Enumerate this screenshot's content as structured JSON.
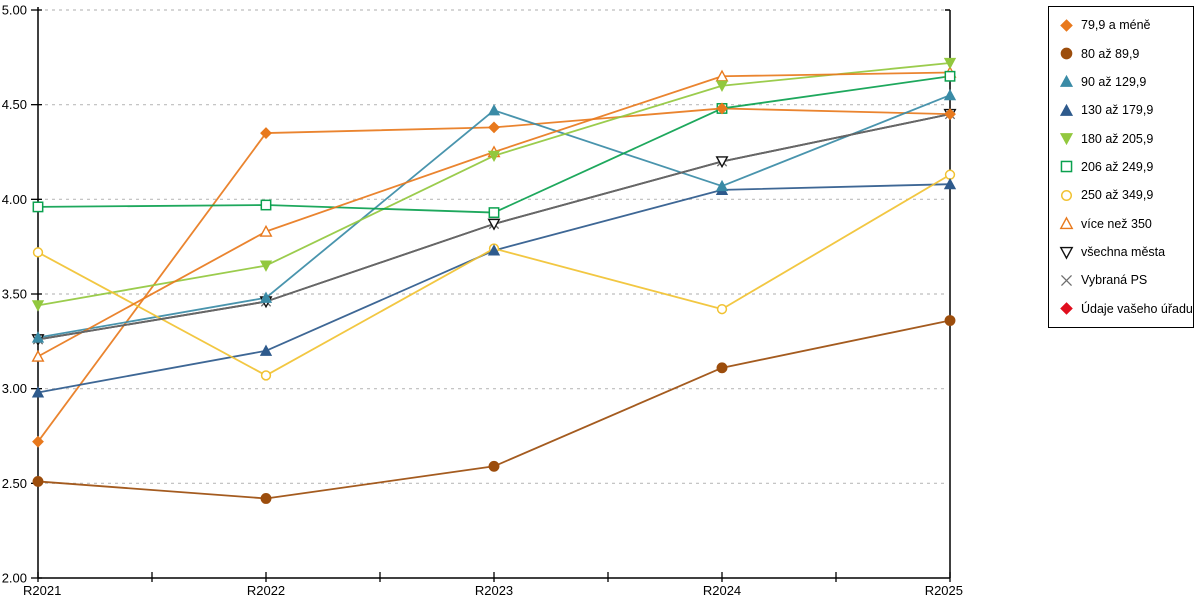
{
  "chart_data": {
    "type": "line",
    "title": "",
    "xlabel": "",
    "ylabel": "",
    "categories": [
      "R2021",
      "R2022",
      "R2023",
      "R2024",
      "R2025"
    ],
    "ylim": [
      2.0,
      5.0
    ],
    "y_ticks": [
      {
        "label": "5.00",
        "value": 5.0
      },
      {
        "label": "4.50",
        "value": 4.5
      },
      {
        "label": "4.00",
        "value": 4.0
      },
      {
        "label": "3.50",
        "value": 3.5
      },
      {
        "label": "3.00",
        "value": 3.0
      },
      {
        "label": "2.50",
        "value": 2.5
      },
      {
        "label": "2.00",
        "value": 2.0
      }
    ],
    "grid": "horizontal-dashed",
    "legend_position": "right-outside",
    "series": [
      {
        "name": "79,9 a méně",
        "color": "#E8791D",
        "marker": "diamond-filled",
        "values": [
          2.72,
          4.35,
          4.38,
          4.48,
          4.45
        ]
      },
      {
        "name": "80 až 89,9",
        "color": "#9C4D0C",
        "marker": "circle-filled",
        "values": [
          2.51,
          2.42,
          2.59,
          3.11,
          3.36
        ]
      },
      {
        "name": "90 až 129,9",
        "color": "#3A8BA6",
        "marker": "triangle-up-filled",
        "values": [
          3.27,
          3.48,
          4.47,
          4.07,
          4.55
        ]
      },
      {
        "name": "130 až 179,9",
        "color": "#2E5A8C",
        "marker": "triangle-up-filled",
        "values": [
          2.98,
          3.2,
          3.73,
          4.05,
          4.08
        ]
      },
      {
        "name": "180 až 205,9",
        "color": "#92C83E",
        "marker": "triangle-down-filled",
        "values": [
          3.44,
          3.65,
          4.23,
          4.6,
          4.72
        ]
      },
      {
        "name": "206 až 249,9",
        "color": "#0BA14F",
        "marker": "square-open",
        "values": [
          3.96,
          3.97,
          3.93,
          4.48,
          4.65
        ]
      },
      {
        "name": "250 až 349,9",
        "color": "#F1C232",
        "marker": "circle-open",
        "values": [
          3.72,
          3.07,
          3.74,
          3.42,
          4.13
        ]
      },
      {
        "name": "více než 350",
        "color": "#E8791D",
        "marker": "triangle-up-open",
        "values": [
          3.17,
          3.83,
          4.25,
          4.65,
          4.67
        ]
      },
      {
        "name": "všechna města",
        "color": "#111111",
        "marker": "triangle-down-open",
        "values": [
          3.26,
          3.46,
          3.87,
          4.2,
          4.45
        ]
      },
      {
        "name": "Vybraná PS",
        "color": "#6E6E6E",
        "marker": "x-mark",
        "values": [
          3.26,
          3.46,
          3.87,
          4.2,
          4.45
        ]
      },
      {
        "name": "Údaje vašeho úřadu",
        "color": "#E00E1E",
        "marker": "diamond-filled",
        "values": []
      }
    ]
  }
}
